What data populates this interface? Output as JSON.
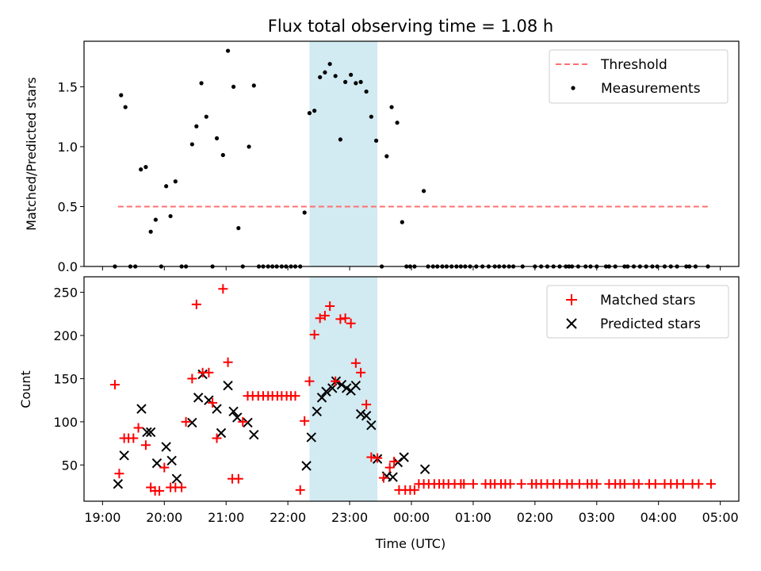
{
  "chart_data": [
    {
      "type": "scatter",
      "title": "Flux total observing time = 1.08 h",
      "xlabel": "",
      "ylabel": "Matched/Predicted stars",
      "xlim": [
        18.7,
        29.3
      ],
      "ylim": [
        0,
        1.88
      ],
      "yticks": [
        0.0,
        0.5,
        1.0,
        1.5
      ],
      "ytick_labels": [
        "0.0",
        "0.5",
        "1.0",
        "1.5"
      ],
      "shaded_region": [
        22.35,
        23.45
      ],
      "threshold": {
        "name": "Threshold",
        "value": 0.5,
        "x_range": [
          19.25,
          28.85
        ],
        "color": "#ff7070"
      },
      "legend": {
        "entries": [
          "Threshold",
          "Measurements"
        ],
        "location": "upper right"
      },
      "series": [
        {
          "name": "Measurements",
          "color": "#000000",
          "x": [
            19.2,
            19.3,
            19.37,
            19.45,
            19.53,
            19.62,
            19.7,
            19.78,
            19.86,
            19.95,
            20.03,
            20.1,
            20.18,
            20.28,
            20.35,
            20.45,
            20.52,
            20.6,
            20.68,
            20.78,
            20.85,
            20.95,
            21.03,
            21.12,
            21.2,
            21.27,
            21.37,
            21.45,
            21.53,
            21.6,
            21.68,
            21.75,
            21.82,
            21.9,
            21.97,
            22.05,
            22.12,
            22.2,
            22.27,
            22.35,
            22.43,
            22.52,
            22.6,
            22.68,
            22.77,
            22.85,
            22.93,
            23.02,
            23.1,
            23.18,
            23.27,
            23.35,
            23.43,
            23.52,
            23.6,
            23.68,
            23.77,
            23.85,
            23.92,
            23.98,
            24.05,
            24.2,
            24.27,
            24.35,
            24.42,
            24.5,
            24.57,
            24.65,
            24.73,
            24.8,
            24.87,
            24.95,
            25.05,
            25.15,
            25.25,
            25.35,
            25.42,
            25.5,
            25.58,
            25.65,
            25.8,
            26.0,
            26.1,
            26.2,
            26.3,
            26.4,
            26.5,
            26.55,
            26.6,
            26.7,
            26.82,
            26.9,
            27.0,
            27.15,
            27.2,
            27.3,
            27.45,
            27.5,
            27.6,
            27.7,
            27.8,
            27.9,
            27.98,
            28.1,
            28.2,
            28.3,
            28.45,
            28.5,
            28.6,
            28.8
          ],
          "y": [
            0,
            1.43,
            1.33,
            0,
            0,
            0.81,
            0.83,
            0.29,
            0.39,
            0,
            0.67,
            0.42,
            0.71,
            0,
            0,
            1.02,
            1.17,
            1.53,
            1.25,
            0,
            1.07,
            0.93,
            1.8,
            1.5,
            0.32,
            0,
            1.0,
            1.51,
            0,
            0,
            0,
            0,
            0,
            0,
            0,
            0,
            0,
            0,
            0.45,
            1.28,
            1.3,
            1.58,
            1.62,
            1.69,
            1.59,
            1.06,
            1.54,
            1.6,
            1.53,
            1.54,
            1.46,
            1.25,
            1.05,
            0,
            0.92,
            1.33,
            1.2,
            0.37,
            0,
            0,
            0,
            0.63,
            0,
            0,
            0,
            0,
            0,
            0,
            0,
            0,
            0,
            0,
            0,
            0,
            0,
            0,
            0,
            0,
            0,
            0,
            0,
            0,
            0,
            0,
            0,
            0,
            0,
            0,
            0,
            0,
            0,
            0,
            0,
            0,
            0,
            0,
            0,
            0,
            0,
            0,
            0,
            0,
            0,
            0,
            0,
            0,
            0,
            0,
            0,
            0
          ]
        }
      ]
    },
    {
      "type": "scatter",
      "title": "",
      "xlabel": "Time (UTC)",
      "ylabel": "Count",
      "xlim": [
        18.7,
        29.3
      ],
      "ylim": [
        8,
        268
      ],
      "yticks": [
        50,
        100,
        150,
        200,
        250
      ],
      "ytick_labels": [
        "50",
        "100",
        "150",
        "200",
        "250"
      ],
      "xticks": [
        19,
        20,
        21,
        22,
        23,
        24,
        25,
        26,
        27,
        28,
        29
      ],
      "xtick_labels": [
        "19:00",
        "20:00",
        "21:00",
        "22:00",
        "23:00",
        "00:00",
        "01:00",
        "02:00",
        "03:00",
        "04:00",
        "05:00"
      ],
      "shaded_region": [
        22.35,
        23.45
      ],
      "legend": {
        "entries": [
          "Matched stars",
          "Predicted stars"
        ],
        "location": "upper right"
      },
      "series": [
        {
          "name": "Matched stars",
          "marker": "plus",
          "color": "#ff0000",
          "x": [
            19.2,
            19.27,
            19.35,
            19.42,
            19.5,
            19.58,
            19.7,
            19.78,
            19.85,
            19.92,
            20.0,
            20.1,
            20.18,
            20.28,
            20.35,
            20.45,
            20.52,
            20.62,
            20.72,
            20.78,
            20.85,
            20.95,
            21.03,
            21.1,
            21.2,
            21.27,
            21.35,
            21.43,
            21.52,
            21.6,
            21.68,
            21.75,
            21.83,
            21.9,
            21.98,
            22.05,
            22.12,
            22.2,
            22.27,
            22.35,
            22.43,
            22.52,
            22.6,
            22.68,
            22.77,
            22.85,
            22.93,
            23.02,
            23.1,
            23.18,
            23.27,
            23.35,
            23.45,
            23.55,
            23.65,
            23.72,
            23.8,
            23.9,
            23.98,
            24.05,
            24.12,
            24.2,
            24.28,
            24.37,
            24.45,
            24.52,
            24.6,
            24.7,
            24.8,
            24.85,
            25.0,
            25.2,
            25.28,
            25.35,
            25.45,
            25.52,
            25.6,
            25.78,
            25.95,
            26.02,
            26.1,
            26.2,
            26.3,
            26.4,
            26.52,
            26.6,
            26.72,
            26.85,
            26.92,
            27.0,
            27.2,
            27.3,
            27.38,
            27.45,
            27.6,
            27.68,
            27.85,
            27.95,
            28.1,
            28.2,
            28.3,
            28.4,
            28.55,
            28.65,
            28.85
          ],
          "y": [
            143,
            40,
            81,
            81,
            81,
            93,
            73,
            24,
            20,
            20,
            47,
            24,
            24,
            24,
            100,
            150,
            236,
            157,
            157,
            122,
            81,
            254,
            169,
            34,
            34,
            100,
            130,
            130,
            130,
            130,
            130,
            130,
            130,
            130,
            130,
            130,
            130,
            21,
            101,
            147,
            201,
            220,
            223,
            234,
            147,
            219,
            220,
            214,
            168,
            157,
            120,
            59,
            58,
            35,
            47,
            54,
            21,
            21,
            21,
            21,
            28,
            28,
            28,
            28,
            28,
            28,
            28,
            28,
            28,
            28,
            28,
            28,
            28,
            28,
            28,
            28,
            28,
            28,
            28,
            28,
            28,
            28,
            28,
            28,
            28,
            28,
            28,
            28,
            28,
            28,
            28,
            28,
            28,
            28,
            28,
            28,
            28,
            28,
            28,
            28,
            28,
            28,
            28,
            28,
            28
          ]
        },
        {
          "name": "Predicted stars",
          "marker": "x",
          "color": "#000000",
          "x": [
            19.25,
            19.35,
            19.63,
            19.72,
            19.78,
            19.88,
            20.03,
            20.12,
            20.2,
            20.45,
            20.55,
            20.62,
            20.72,
            20.85,
            20.92,
            21.03,
            21.12,
            21.18,
            21.35,
            21.45,
            22.3,
            22.38,
            22.47,
            22.55,
            22.62,
            22.72,
            22.78,
            22.87,
            22.95,
            23.02,
            23.1,
            23.18,
            23.27,
            23.35,
            23.45,
            23.6,
            23.7,
            23.78,
            23.88,
            24.22
          ],
          "y": [
            28,
            61,
            115,
            88,
            88,
            52,
            71,
            55,
            34,
            99,
            128,
            155,
            125,
            115,
            87,
            142,
            112,
            105,
            99,
            85,
            49,
            82,
            112,
            128,
            135,
            139,
            147,
            143,
            139,
            136,
            142,
            109,
            107,
            96,
            57,
            37,
            36,
            53,
            59,
            45
          ]
        }
      ]
    }
  ]
}
